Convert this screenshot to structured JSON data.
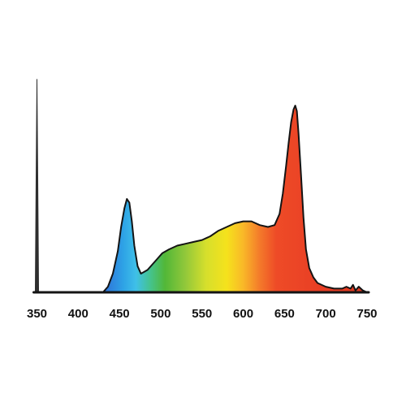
{
  "chart_data": {
    "type": "area",
    "title": "",
    "xlabel": "",
    "ylabel": "",
    "xlim": [
      350,
      750
    ],
    "ylim": [
      0,
      1
    ],
    "grid": false,
    "legend": "none",
    "x_ticks": [
      350,
      400,
      450,
      500,
      550,
      600,
      650,
      700,
      750
    ],
    "x_tick_labels": [
      "350",
      "400",
      "450",
      "500",
      "550",
      "600",
      "650",
      "700",
      "750"
    ],
    "series": [
      {
        "fill": "visible-spectrum-gradient",
        "x": [
          350,
          430,
          436,
          442,
          448,
          452,
          456,
          459,
          462,
          465,
          468,
          472,
          476,
          480,
          484,
          490,
          496,
          502,
          510,
          520,
          530,
          540,
          550,
          560,
          570,
          580,
          590,
          600,
          610,
          620,
          630,
          638,
          644,
          648,
          652,
          655,
          658,
          661,
          663,
          665,
          667,
          670,
          673,
          676,
          680,
          685,
          690,
          700,
          710,
          720,
          725,
          730,
          733,
          736,
          740,
          745,
          750
        ],
        "y": [
          0.0,
          0.0,
          0.03,
          0.1,
          0.22,
          0.35,
          0.45,
          0.5,
          0.48,
          0.38,
          0.25,
          0.14,
          0.1,
          0.11,
          0.12,
          0.15,
          0.18,
          0.21,
          0.23,
          0.25,
          0.26,
          0.27,
          0.28,
          0.3,
          0.33,
          0.35,
          0.37,
          0.38,
          0.38,
          0.36,
          0.35,
          0.36,
          0.42,
          0.53,
          0.68,
          0.8,
          0.91,
          0.98,
          1.0,
          0.97,
          0.85,
          0.63,
          0.4,
          0.23,
          0.13,
          0.08,
          0.05,
          0.03,
          0.02,
          0.02,
          0.03,
          0.02,
          0.04,
          0.01,
          0.03,
          0.01,
          0.0
        ]
      },
      {
        "fill": "dark-grey",
        "x": [
          348,
          349,
          350,
          351,
          352
        ],
        "y": [
          0.0,
          0.6,
          1.14,
          0.6,
          0.0
        ]
      }
    ],
    "colors": {
      "outline": "#141414",
      "uv_spike": "#2e2e2e",
      "axis": "#141414",
      "spectrum_stops": [
        {
          "x": 430,
          "color": "#2f6fd8"
        },
        {
          "x": 455,
          "color": "#2ea3e6"
        },
        {
          "x": 470,
          "color": "#3fc0e8"
        },
        {
          "x": 488,
          "color": "#45c38a"
        },
        {
          "x": 505,
          "color": "#52b738"
        },
        {
          "x": 530,
          "color": "#92c83a"
        },
        {
          "x": 555,
          "color": "#d6df2c"
        },
        {
          "x": 580,
          "color": "#f5e21c"
        },
        {
          "x": 600,
          "color": "#f9b828"
        },
        {
          "x": 620,
          "color": "#f47a2a"
        },
        {
          "x": 640,
          "color": "#ee4b27"
        },
        {
          "x": 700,
          "color": "#e83d24"
        },
        {
          "x": 750,
          "color": "#e03a22"
        }
      ]
    }
  }
}
